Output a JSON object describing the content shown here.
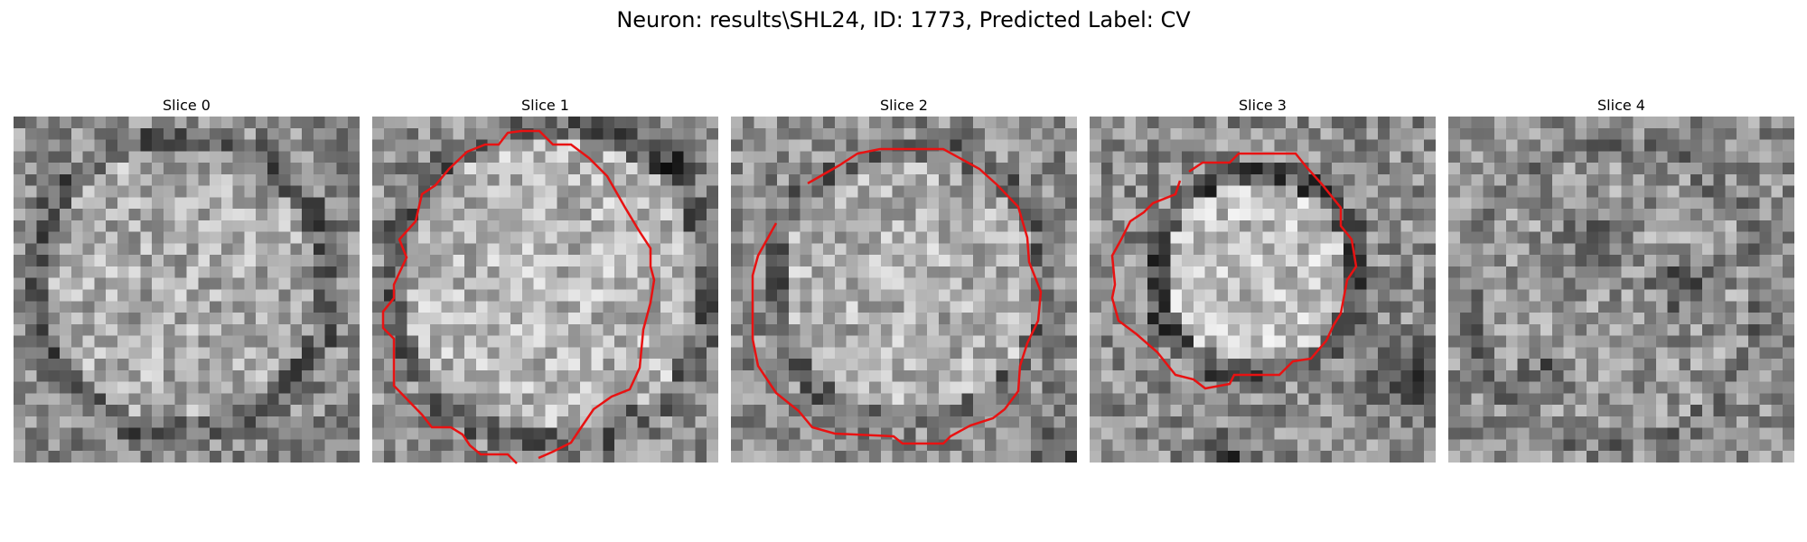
{
  "figure": {
    "title": "Neuron: results\\SHL24, ID: 1773, Predicted Label: CV",
    "contour_color": "#e81212"
  },
  "panels": [
    {
      "title": "Slice 0",
      "has_contour": false
    },
    {
      "title": "Slice 1",
      "has_contour": true
    },
    {
      "title": "Slice 2",
      "has_contour": true
    },
    {
      "title": "Slice 3",
      "has_contour": true
    },
    {
      "title": "Slice 4",
      "has_contour": false
    }
  ]
}
